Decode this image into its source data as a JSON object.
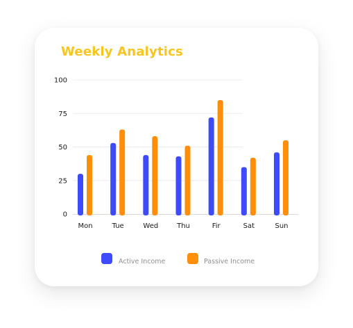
{
  "colors": {
    "title": "#F7C51E",
    "active": "#3E4BFA",
    "passive": "#FF8F0A",
    "grid": "#ECECEC",
    "axis": "#D9D9D9"
  },
  "chart_data": {
    "type": "bar",
    "title": "Weekly Analytics",
    "xlabel": "",
    "ylabel": "",
    "ylim": [
      0,
      100
    ],
    "yticks": [
      0,
      25,
      50,
      75,
      100
    ],
    "grid": true,
    "legend_position": "bottom",
    "categories": [
      "Mon",
      "Tue",
      "Wed",
      "Thu",
      "Fir",
      "Sat",
      "Sun"
    ],
    "series": [
      {
        "name": "Active Income",
        "color": "#3E4BFA",
        "values": [
          30,
          53,
          44,
          43,
          72,
          35,
          46
        ]
      },
      {
        "name": "Passive Income",
        "color": "#FF8F0A",
        "values": [
          44,
          63,
          58,
          51,
          85,
          42,
          55
        ]
      }
    ]
  }
}
